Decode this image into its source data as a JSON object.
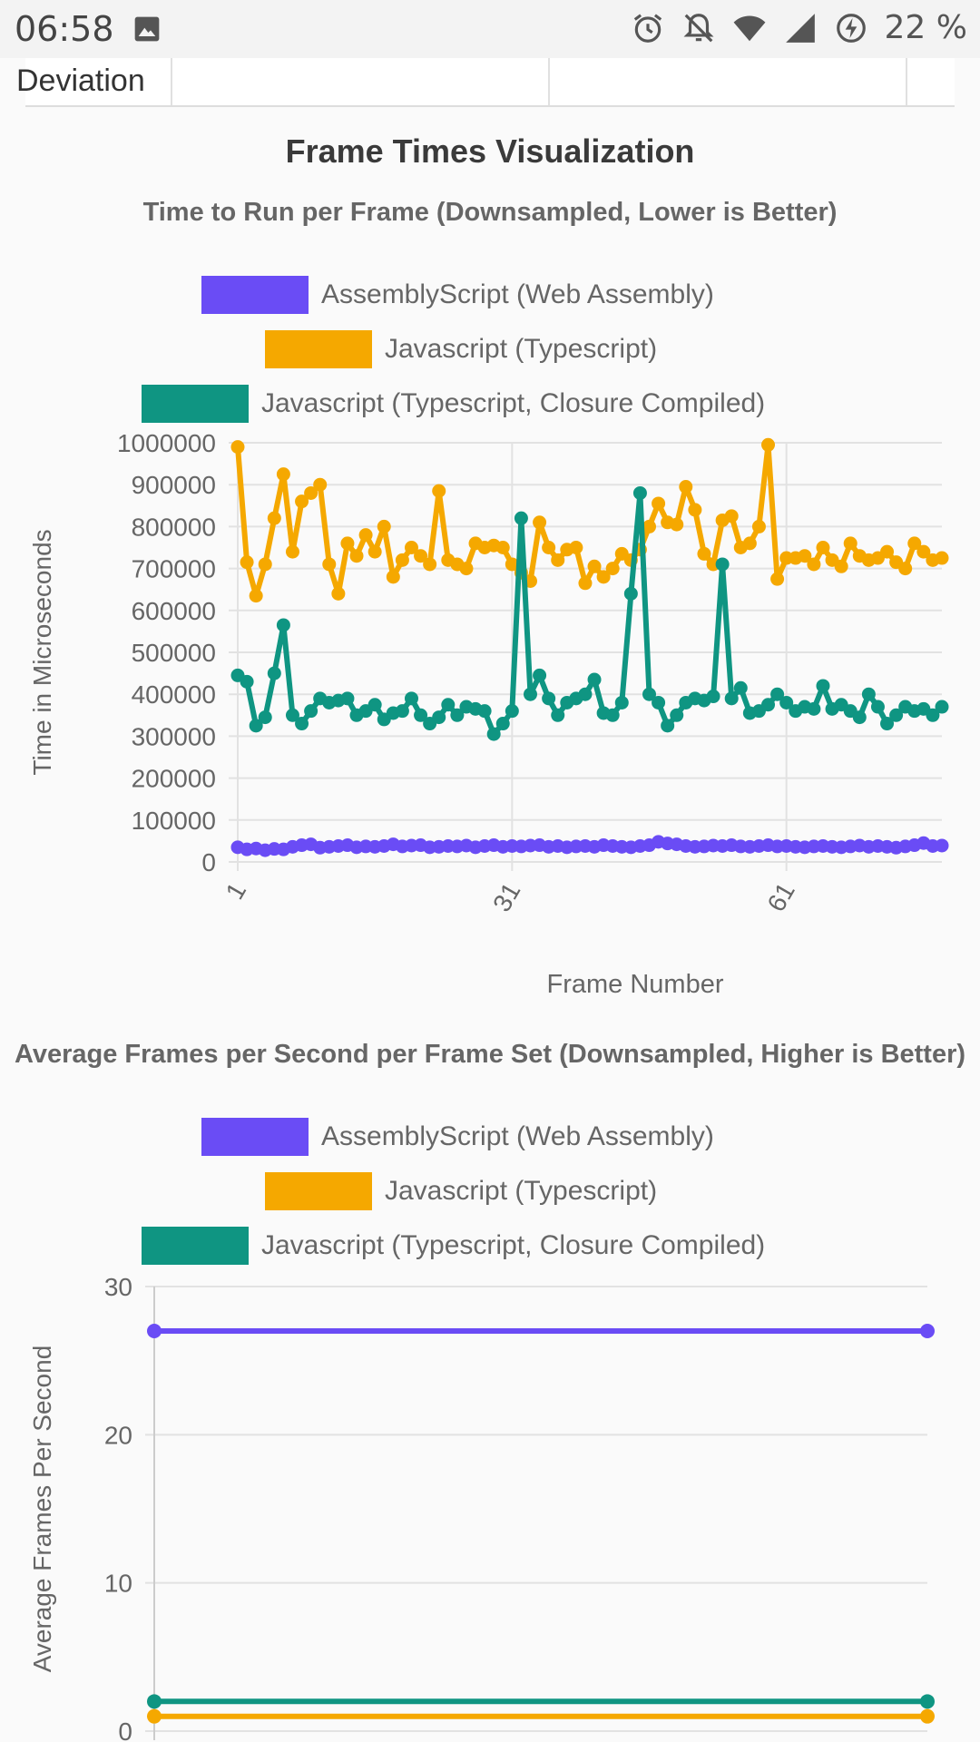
{
  "status_bar": {
    "time": "06:58",
    "battery": "22 %"
  },
  "table": {
    "partial_label": "Deviation"
  },
  "section": {
    "title": "Frame Times Visualization"
  },
  "legend": [
    {
      "label": "AssemblyScript (Web Assembly)",
      "color": "#6a4cf5"
    },
    {
      "label": "Javascript (Typescript)",
      "color": "#f5a800"
    },
    {
      "label": "Javascript (Typescript, Closure Compiled)",
      "color": "#0f9582"
    }
  ],
  "chart_data": [
    {
      "type": "line",
      "title": "Time to Run per Frame (Downsampled, Lower is Better)",
      "xlabel": "Frame Number",
      "ylabel": "Time in Microseconds",
      "ylim": [
        0,
        1000000
      ],
      "yticks": [
        "0",
        "100000",
        "200000",
        "300000",
        "400000",
        "500000",
        "600000",
        "700000",
        "800000",
        "900000",
        "1000000"
      ],
      "xticks": [
        "1",
        "31",
        "61"
      ],
      "x_range": [
        1,
        78
      ],
      "grid": true,
      "legend_position": "top",
      "series": [
        {
          "name": "AssemblyScript (Web Assembly)",
          "color": "#6a4cf5",
          "values": [
            35000,
            30000,
            32000,
            28000,
            31000,
            30000,
            36000,
            40000,
            42000,
            34000,
            36000,
            38000,
            40000,
            35000,
            37000,
            36000,
            38000,
            42000,
            37000,
            39000,
            40000,
            35000,
            36000,
            38000,
            37000,
            39000,
            35000,
            38000,
            40000,
            36000,
            38000,
            37000,
            39000,
            40000,
            36000,
            38000,
            35000,
            37000,
            38000,
            36000,
            40000,
            38000,
            36000,
            35000,
            38000,
            40000,
            48000,
            44000,
            42000,
            38000,
            36000,
            37000,
            39000,
            38000,
            40000,
            37000,
            36000,
            38000,
            40000,
            37000,
            38000,
            36000,
            35000,
            37000,
            38000,
            36000,
            35000,
            37000,
            39000,
            36000,
            38000,
            36000,
            34000,
            37000,
            40000,
            45000,
            38000,
            39000
          ]
        },
        {
          "name": "Javascript (Typescript)",
          "color": "#f5a800",
          "values": [
            990000,
            715000,
            635000,
            710000,
            820000,
            925000,
            740000,
            860000,
            880000,
            900000,
            710000,
            640000,
            760000,
            730000,
            780000,
            740000,
            800000,
            680000,
            720000,
            750000,
            730000,
            710000,
            885000,
            720000,
            710000,
            700000,
            760000,
            750000,
            755000,
            750000,
            710000,
            690000,
            670000,
            810000,
            750000,
            720000,
            745000,
            750000,
            665000,
            705000,
            680000,
            700000,
            735000,
            720000,
            745000,
            800000,
            855000,
            810000,
            805000,
            895000,
            840000,
            735000,
            710000,
            815000,
            825000,
            750000,
            760000,
            800000,
            995000,
            675000,
            725000,
            725000,
            730000,
            710000,
            750000,
            720000,
            705000,
            760000,
            730000,
            720000,
            725000,
            740000,
            715000,
            700000,
            760000,
            740000,
            720000,
            725000
          ]
        },
        {
          "name": "Javascript (Typescript, Closure Compiled)",
          "color": "#0f9582",
          "values": [
            445000,
            430000,
            325000,
            345000,
            450000,
            565000,
            350000,
            330000,
            360000,
            390000,
            380000,
            385000,
            390000,
            350000,
            360000,
            375000,
            340000,
            355000,
            360000,
            390000,
            350000,
            330000,
            345000,
            375000,
            350000,
            370000,
            365000,
            360000,
            305000,
            330000,
            360000,
            820000,
            400000,
            445000,
            390000,
            350000,
            380000,
            390000,
            400000,
            435000,
            355000,
            350000,
            380000,
            640000,
            880000,
            400000,
            380000,
            325000,
            350000,
            380000,
            390000,
            385000,
            395000,
            710000,
            390000,
            415000,
            355000,
            360000,
            375000,
            400000,
            380000,
            360000,
            370000,
            365000,
            420000,
            365000,
            375000,
            360000,
            345000,
            400000,
            370000,
            330000,
            350000,
            370000,
            360000,
            365000,
            350000,
            370000
          ]
        }
      ]
    },
    {
      "type": "line",
      "title": "Average Frames per Second per Frame Set (Downsampled, Higher is Better)",
      "xlabel": "",
      "ylabel": "Average Frames Per Second",
      "ylim": [
        0,
        30
      ],
      "yticks": [
        "0",
        "10",
        "20",
        "30"
      ],
      "grid": true,
      "legend_position": "top",
      "series": [
        {
          "name": "AssemblyScript (Web Assembly)",
          "color": "#6a4cf5",
          "values": [
            27,
            27
          ]
        },
        {
          "name": "Javascript (Typescript)",
          "color": "#f5a800",
          "values": [
            1,
            1
          ]
        },
        {
          "name": "Javascript (Typescript, Closure Compiled)",
          "color": "#0f9582",
          "values": [
            2,
            2
          ]
        }
      ]
    }
  ]
}
